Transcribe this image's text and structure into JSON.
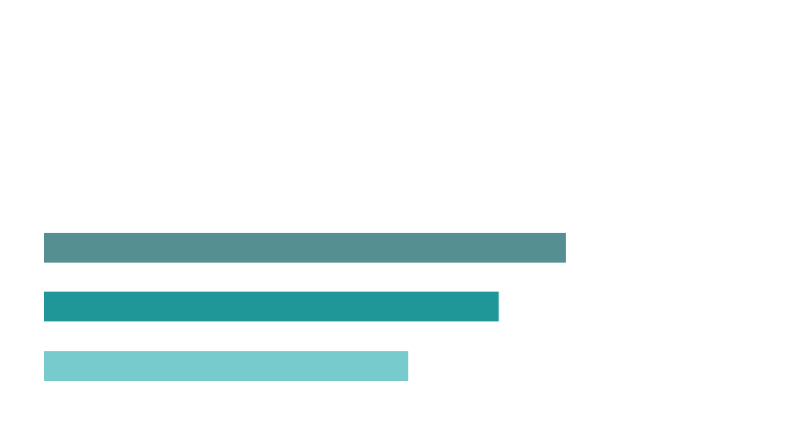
{
  "chart_data": {
    "type": "bar",
    "orientation": "horizontal",
    "title": "",
    "xlabel": "",
    "ylabel": "",
    "xlim": [
      0,
      100
    ],
    "grid": false,
    "legend": "none",
    "categories": [
      "",
      "",
      ""
    ],
    "values": [
      71.5,
      62.3,
      49.9
    ],
    "colors": [
      "#558f91",
      "#1f9698",
      "#78cbcc"
    ]
  }
}
